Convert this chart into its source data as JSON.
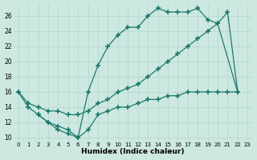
{
  "xlabel": "Humidex (Indice chaleur)",
  "bg_color": "#cce8e0",
  "line_color": "#1a7a6e",
  "xlim": [
    -0.5,
    23.5
  ],
  "ylim": [
    9.5,
    27.5
  ],
  "xticks": [
    0,
    1,
    2,
    3,
    4,
    5,
    6,
    7,
    8,
    9,
    10,
    11,
    12,
    13,
    14,
    15,
    16,
    17,
    18,
    19,
    20,
    21,
    22,
    23
  ],
  "yticks": [
    10,
    12,
    14,
    16,
    18,
    20,
    22,
    24,
    26
  ],
  "line1_x": [
    0,
    1,
    2,
    3,
    4,
    5,
    6,
    7,
    8,
    9,
    10,
    11,
    12,
    13,
    14,
    15,
    16,
    17,
    18,
    19,
    20,
    21,
    22
  ],
  "line1_y": [
    16,
    14,
    13,
    12,
    11,
    10.5,
    10,
    16,
    19.5,
    22,
    23.5,
    24.5,
    24.5,
    26,
    27,
    26.5,
    26.5,
    26.5,
    27,
    25.5,
    25,
    26.5,
    16
  ],
  "line2_x": [
    0,
    1,
    2,
    3,
    4,
    5,
    6,
    7,
    8,
    9,
    10,
    11,
    12,
    13,
    14,
    15,
    16,
    17,
    18,
    19,
    20,
    22
  ],
  "line2_y": [
    16,
    14.5,
    14,
    13.5,
    13.5,
    13,
    13,
    13.5,
    14.5,
    15,
    16,
    16.5,
    17,
    18,
    19,
    20,
    21,
    22,
    23,
    24,
    25,
    16
  ],
  "line3_x": [
    2,
    3,
    4,
    5,
    6,
    7,
    8,
    9,
    10,
    11,
    12,
    13,
    14,
    15,
    16,
    17,
    18,
    19,
    20,
    21,
    22
  ],
  "line3_y": [
    13,
    12,
    11.5,
    11,
    10,
    11,
    13,
    13.5,
    14,
    14,
    14.5,
    15,
    15,
    15.5,
    15.5,
    16,
    16,
    16,
    16,
    16,
    16
  ]
}
